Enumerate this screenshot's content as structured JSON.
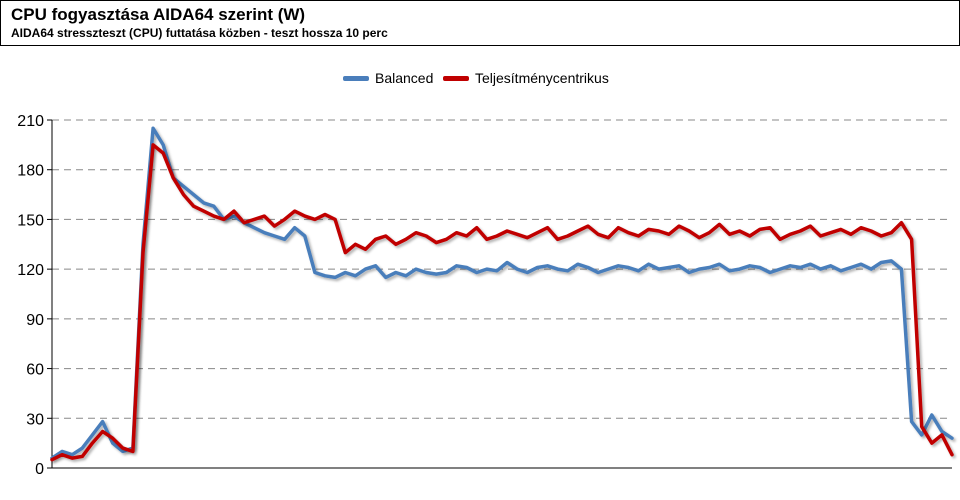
{
  "header": {
    "title": "CPU fogyasztása AIDA64 szerint (W)",
    "subtitle": "AIDA64 stresszteszt (CPU) futtatása közben - teszt hossza 10 perc"
  },
  "chart_data": {
    "type": "line",
    "title": "CPU fogyasztása AIDA64 szerint (W)",
    "subtitle": "AIDA64 stresszteszt (CPU) futtatása közben - teszt hossza 10 perc",
    "xlabel": "",
    "ylabel": "",
    "ylim": [
      0,
      210
    ],
    "yticks": [
      0,
      30,
      60,
      90,
      120,
      150,
      180,
      210
    ],
    "grid": "horizontal-dashed",
    "legend": "top-center",
    "x_count": 90,
    "series": [
      {
        "name": "Balanced",
        "color": "#4a7ebb",
        "values": [
          6,
          10,
          8,
          12,
          20,
          28,
          15,
          10,
          12,
          135,
          205,
          195,
          175,
          170,
          165,
          160,
          158,
          150,
          152,
          148,
          145,
          142,
          140,
          138,
          145,
          140,
          118,
          116,
          115,
          118,
          116,
          120,
          122,
          115,
          118,
          116,
          120,
          118,
          117,
          118,
          122,
          121,
          118,
          120,
          119,
          124,
          120,
          118,
          121,
          122,
          120,
          119,
          123,
          121,
          118,
          120,
          122,
          121,
          119,
          123,
          120,
          121,
          122,
          118,
          120,
          121,
          123,
          119,
          120,
          122,
          121,
          118,
          120,
          122,
          121,
          123,
          120,
          122,
          119,
          121,
          123,
          120,
          124,
          125,
          120,
          28,
          20,
          32,
          22,
          18
        ]
      },
      {
        "name": "Teljesítménycentrikus",
        "color": "#c00000",
        "values": [
          5,
          8,
          6,
          7,
          15,
          22,
          18,
          12,
          10,
          130,
          195,
          190,
          175,
          165,
          158,
          155,
          152,
          150,
          155,
          148,
          150,
          152,
          146,
          150,
          155,
          152,
          150,
          153,
          150,
          130,
          135,
          132,
          138,
          140,
          135,
          138,
          142,
          140,
          136,
          138,
          142,
          140,
          145,
          138,
          140,
          143,
          141,
          139,
          142,
          145,
          138,
          140,
          143,
          146,
          141,
          139,
          145,
          142,
          140,
          144,
          143,
          141,
          146,
          143,
          139,
          142,
          147,
          141,
          143,
          140,
          144,
          145,
          138,
          141,
          143,
          146,
          140,
          142,
          144,
          141,
          145,
          143,
          140,
          142,
          148,
          138,
          25,
          15,
          20,
          8
        ]
      }
    ]
  }
}
